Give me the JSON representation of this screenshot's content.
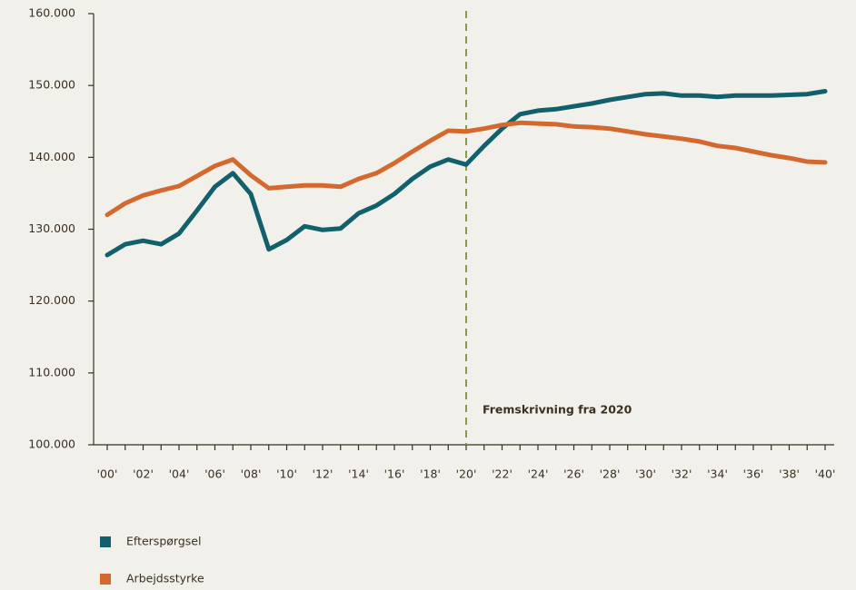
{
  "chart_data": {
    "type": "line",
    "categories": [
      "'00'",
      null,
      "'02'",
      null,
      "'04'",
      null,
      "'06'",
      null,
      "'08'",
      null,
      "'10'",
      null,
      "'12'",
      null,
      "'14'",
      null,
      "'16'",
      null,
      "'18'",
      null,
      "'20'",
      null,
      "'22'",
      null,
      "'24'",
      null,
      "'26'",
      null,
      "'28'",
      null,
      "'30'",
      null,
      "'32'",
      null,
      "'34'",
      null,
      "'36'",
      null,
      "'38'",
      null,
      "'40'"
    ],
    "series": [
      {
        "name": "Efterspørgsel",
        "color": "#12606b",
        "values": [
          126400,
          127900,
          128400,
          127900,
          129400,
          132600,
          135900,
          137800,
          134900,
          127200,
          128500,
          130400,
          129900,
          130100,
          132200,
          133300,
          134900,
          137000,
          138700,
          139700,
          139000,
          141600,
          144000,
          146000,
          146500,
          146700,
          147100,
          147500,
          148000,
          148400,
          148800,
          148900,
          148600,
          148600,
          148400,
          148600,
          148600,
          148600,
          148700,
          148800,
          149200
        ]
      },
      {
        "name": "Arbejdsstyrke",
        "color": "#d4692f",
        "values": [
          132000,
          133600,
          134700,
          135400,
          136000,
          137400,
          138800,
          139700,
          137500,
          135700,
          135900,
          136100,
          136100,
          135900,
          137000,
          137800,
          139200,
          140800,
          142300,
          143700,
          143600,
          144000,
          144500,
          144800,
          144700,
          144600,
          144300,
          144200,
          144000,
          143600,
          143200,
          142900,
          142600,
          142200,
          141600,
          141300,
          140800,
          140300,
          139900,
          139400,
          139300
        ]
      }
    ],
    "ylim": [
      100000,
      160000
    ],
    "yticks": [
      {
        "value": 100000,
        "label": "100.000"
      },
      {
        "value": 110000,
        "label": "110.000"
      },
      {
        "value": 120000,
        "label": "120.000"
      },
      {
        "value": 130000,
        "label": "130.000"
      },
      {
        "value": 140000,
        "label": "140.000"
      },
      {
        "value": 150000,
        "label": "150.000"
      },
      {
        "value": 160000,
        "label": "160.000"
      }
    ],
    "annotation": {
      "label": "Fremskrivning fra 2020",
      "category_index": 20,
      "color": "#8a9a4a"
    },
    "legend": "bottom-left"
  }
}
